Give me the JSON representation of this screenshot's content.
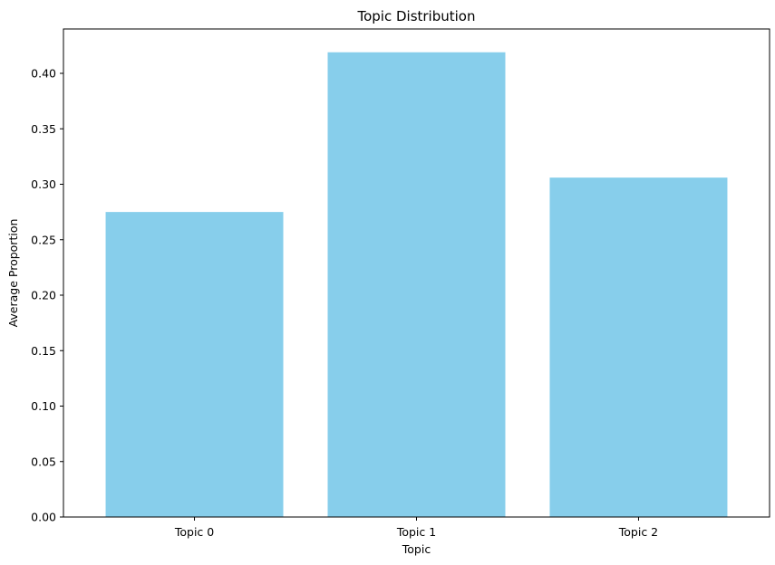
{
  "chart_data": {
    "type": "bar",
    "title": "Topic Distribution",
    "xlabel": "Topic",
    "ylabel": "Average Proportion",
    "categories": [
      "Topic 0",
      "Topic 1",
      "Topic 2"
    ],
    "values": [
      0.275,
      0.419,
      0.306
    ],
    "ylim": [
      0,
      0.44
    ],
    "yticks": [
      0.0,
      0.05,
      0.1,
      0.15,
      0.2,
      0.25,
      0.3,
      0.35,
      0.4
    ],
    "ytick_labels": [
      "0.00",
      "0.05",
      "0.10",
      "0.15",
      "0.20",
      "0.25",
      "0.30",
      "0.35",
      "0.40"
    ],
    "bar_color": "#87CEEB",
    "grid": false,
    "legend": "none"
  }
}
